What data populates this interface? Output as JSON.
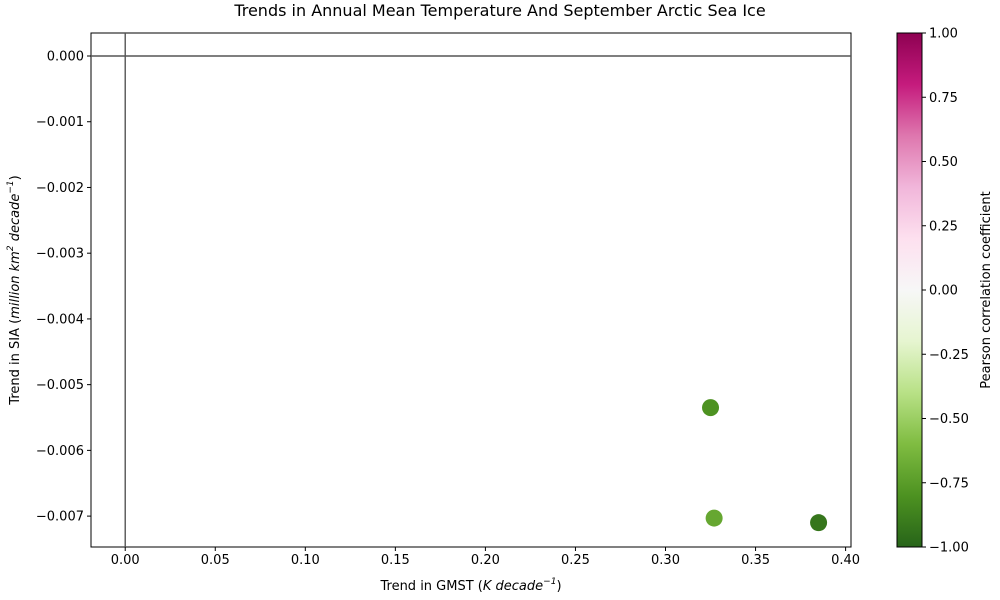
{
  "chart_data": {
    "type": "scatter",
    "title": "Trends in Annual Mean Temperature And September Arctic Sea Ice",
    "xlabel": {
      "prefix": "Trend in GMST (",
      "italic": "K decade",
      "superscript": "−1",
      "suffix": ")"
    },
    "ylabel": {
      "prefix": "Trend in SIA (",
      "italic_a": "million km",
      "superscript_a": "2",
      "italic_b": " decade",
      "superscript_b": "−1",
      "suffix": ")"
    },
    "xlim": [
      -0.019,
      0.403
    ],
    "ylim": [
      -0.00747,
      0.00035
    ],
    "xticks": [
      0.0,
      0.05,
      0.1,
      0.15,
      0.2,
      0.25,
      0.3,
      0.35,
      0.4
    ],
    "xtick_labels": [
      "0.00",
      "0.05",
      "0.10",
      "0.15",
      "0.20",
      "0.25",
      "0.30",
      "0.35",
      "0.40"
    ],
    "yticks": [
      0.0,
      -0.001,
      -0.002,
      -0.003,
      -0.004,
      -0.005,
      -0.006,
      -0.007
    ],
    "ytick_labels": [
      "0.000",
      "−0.001",
      "−0.002",
      "−0.003",
      "−0.004",
      "−0.005",
      "−0.006",
      "−0.007"
    ],
    "reference_lines": {
      "x": 0.0,
      "y": 0.0
    },
    "points": [
      {
        "x": 0.325,
        "y": -0.00535,
        "r": -0.8
      },
      {
        "x": 0.327,
        "y": -0.00703,
        "r": -0.7
      },
      {
        "x": 0.385,
        "y": -0.0071,
        "r": -0.92
      }
    ],
    "grid": false,
    "colorbar": {
      "label": "Pearson correlation coefficient",
      "range": [
        -1.0,
        1.0
      ],
      "ticks": [
        1.0,
        0.75,
        0.5,
        0.25,
        0.0,
        -0.25,
        -0.5,
        -0.75,
        -1.0
      ],
      "tick_labels": [
        "1.00",
        "0.75",
        "0.50",
        "0.25",
        "0.00",
        "−0.25",
        "−0.50",
        "−0.75",
        "−1.00"
      ],
      "colormap": "PiYG",
      "stops": [
        "#276419",
        "#4d9221",
        "#7fbc41",
        "#b8e186",
        "#e6f5d0",
        "#f7f7f7",
        "#fde0ef",
        "#f1b6da",
        "#de77ae",
        "#c51b7d",
        "#8e0152"
      ]
    }
  }
}
